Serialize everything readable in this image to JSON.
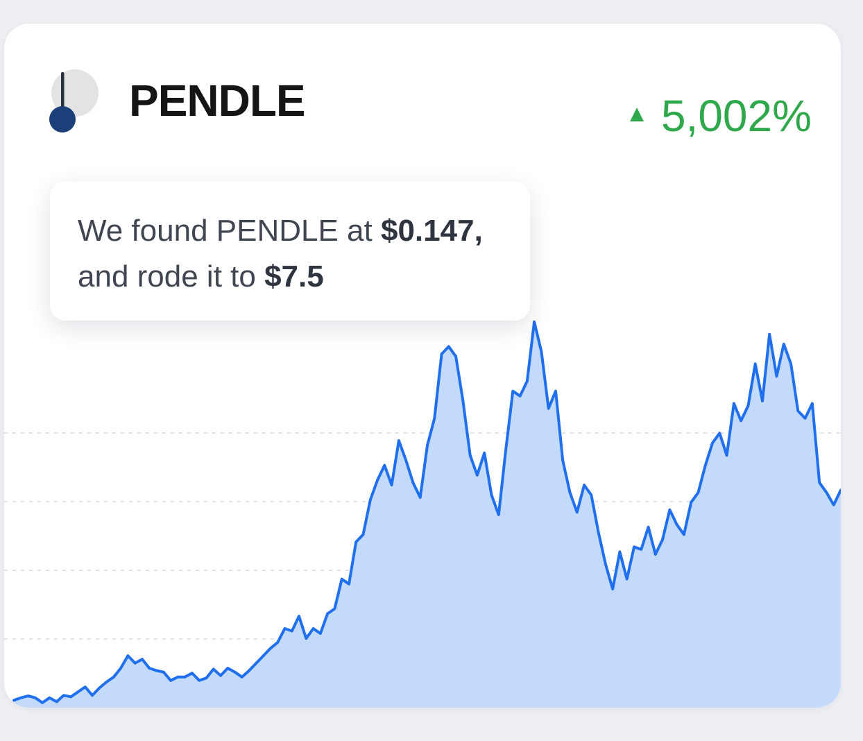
{
  "token": {
    "symbol": "PENDLE",
    "logo_icon": "pendle-logo-icon",
    "change_arrow": "▲",
    "change_pct": "5,002%"
  },
  "tooltip": {
    "line1_prefix": "We found PENDLE at ",
    "entry_price": "$0.147,",
    "line2_prefix": "and rode it to ",
    "exit_price": "$7.5"
  },
  "colors": {
    "line": "#1f6fee",
    "fill": "#c3dafa",
    "positive": "#2ea84a",
    "grid": "#dfe3ea"
  },
  "chart_data": {
    "type": "area",
    "title": "",
    "xlabel": "",
    "ylabel": "",
    "grid": true,
    "ylim": [
      0,
      9.2
    ],
    "series": [
      {
        "name": "PENDLE price (USD)",
        "values": [
          0.15,
          0.2,
          0.24,
          0.2,
          0.1,
          0.2,
          0.12,
          0.25,
          0.22,
          0.32,
          0.42,
          0.25,
          0.4,
          0.52,
          0.62,
          0.8,
          1.05,
          0.9,
          0.98,
          0.8,
          0.75,
          0.72,
          0.55,
          0.62,
          0.62,
          0.7,
          0.55,
          0.6,
          0.78,
          0.65,
          0.8,
          0.72,
          0.62,
          0.75,
          0.9,
          1.05,
          1.2,
          1.32,
          1.6,
          1.55,
          1.85,
          1.4,
          1.6,
          1.5,
          1.9,
          2.0,
          2.6,
          2.5,
          3.35,
          3.5,
          4.2,
          4.6,
          4.9,
          4.5,
          5.4,
          5.0,
          4.55,
          4.25,
          5.3,
          5.85,
          7.15,
          7.3,
          7.1,
          6.2,
          5.1,
          4.7,
          5.15,
          4.3,
          3.9,
          5.2,
          6.4,
          6.3,
          6.6,
          7.8,
          7.2,
          6.05,
          6.4,
          5.0,
          4.35,
          3.95,
          4.5,
          4.3,
          3.55,
          2.9,
          2.4,
          3.15,
          2.6,
          3.25,
          3.2,
          3.65,
          3.1,
          3.4,
          4.0,
          3.7,
          3.5,
          4.15,
          4.35,
          4.9,
          5.35,
          5.55,
          5.1,
          6.15,
          5.8,
          6.1,
          6.95,
          6.2,
          7.55,
          6.7,
          7.35,
          6.95,
          6.0,
          5.85,
          6.15,
          4.55,
          4.35,
          4.1,
          4.4
        ]
      }
    ]
  }
}
